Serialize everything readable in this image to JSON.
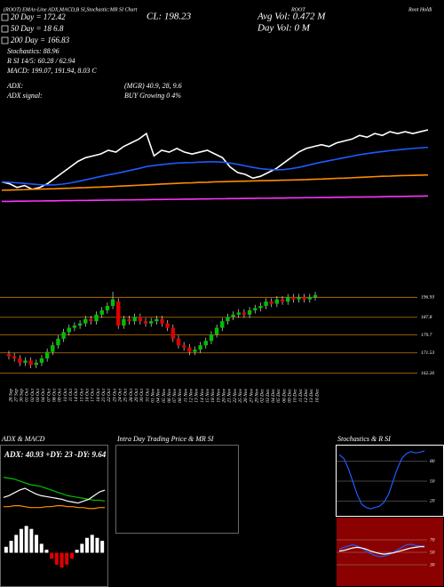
{
  "header": {
    "top_line": "(ROOT) EMAs-Line ADX,MACD,B SI,Stochastic:MR SI Chart",
    "symbol": "ROOT",
    "company": "Root Holdi",
    "ema20": "20 Day = 172.42",
    "close": "CL: 198.23",
    "avg_vol": "Avg Vol: 0.472 M",
    "day_vol": "Day Vol: 0 M",
    "ema50": "50 Day = 18 6.8",
    "ema200": "200 Day = 166.83",
    "stochastics": "Stochastics: 88.96",
    "rsi": "R SI 14/5: 60.28 / 62.94",
    "macd": "MACD: 199.07, 191.94, 8.03 C",
    "adx_label": "ADX:",
    "adx_values": "(MGR) 40.9, 28, 9.6",
    "adx_signal_label": "ADX signal:",
    "adx_signal": "BUY Growing 0 4%"
  },
  "chart_data": [
    {
      "type": "line",
      "ylim": [
        153,
        220
      ],
      "series": [
        {
          "color": "#ffffff",
          "values": [
            170,
            169,
            167,
            168,
            166,
            167,
            169,
            172,
            175,
            178,
            181,
            183,
            184,
            185,
            187,
            186,
            189,
            191,
            193,
            196,
            184,
            187,
            186,
            188,
            186,
            185,
            186,
            187,
            185,
            183,
            178,
            175,
            174,
            172,
            173,
            175,
            177,
            180,
            183,
            186,
            188,
            189,
            190,
            189,
            191,
            192,
            193,
            195,
            194,
            196,
            195,
            197,
            196,
            197,
            196,
            197,
            198
          ]
        },
        {
          "color": "#1e5bff",
          "values": [
            170,
            169.8,
            169.5,
            169.2,
            168.8,
            168.5,
            168.3,
            168.4,
            168.8,
            169.4,
            170.2,
            171.1,
            172,
            172.9,
            173.8,
            174.5,
            175.4,
            176.3,
            177.2,
            178.2,
            178.8,
            179.3,
            179.7,
            180.1,
            180.3,
            180.4,
            180.6,
            180.8,
            180.8,
            180.6,
            180.1,
            179.4,
            178.6,
            177.8,
            177.1,
            176.7,
            176.5,
            176.6,
            177.1,
            177.8,
            178.7,
            179.7,
            180.6,
            181.4,
            182.2,
            183,
            183.8,
            184.6,
            185.2,
            185.8,
            186.3,
            186.8,
            187.2,
            187.6,
            188,
            188.3,
            188.6
          ]
        },
        {
          "color": "#ff8c00",
          "values": [
            165.5,
            165.6,
            165.7,
            165.8,
            166,
            166.1,
            166.2,
            166.3,
            166.5,
            166.6,
            166.8,
            166.9,
            167.1,
            167.2,
            167.4,
            167.6,
            167.8,
            168,
            168.2,
            168.4,
            168.6,
            168.8,
            169,
            169.2,
            169.4,
            169.5,
            169.7,
            169.8,
            170,
            170.1,
            170.2,
            170.3,
            170.4,
            170.5,
            170.6,
            170.7,
            170.8,
            170.9,
            171,
            171.1,
            171.2,
            171.4,
            171.5,
            171.7,
            171.9,
            172,
            172.2,
            172.4,
            172.6,
            172.8,
            173,
            173.1,
            173.3,
            173.4,
            173.5,
            173.6,
            173.7
          ]
        },
        {
          "color": "#ff33ff",
          "values": [
            159.5,
            159.5,
            159.6,
            159.6,
            159.7,
            159.7,
            159.8,
            159.8,
            159.9,
            159.9,
            160,
            160,
            160.1,
            160.1,
            160.2,
            160.2,
            160.3,
            160.3,
            160.4,
            160.4,
            160.5,
            160.5,
            160.6,
            160.6,
            160.7,
            160.7,
            160.8,
            160.8,
            160.9,
            160.9,
            161,
            161,
            161.1,
            161.1,
            161.2,
            161.2,
            161.3,
            161.3,
            161.4,
            161.4,
            161.5,
            161.5,
            161.6,
            161.6,
            161.7,
            161.7,
            161.8,
            161.8,
            161.9,
            161.9,
            162,
            162.1,
            162.1,
            162.2,
            162.3,
            162.3,
            162.4
          ]
        }
      ]
    },
    {
      "type": "candlestick",
      "ylim": [
        158,
        206
      ],
      "yticks": [
        196.93,
        187.8,
        179.7,
        171.53,
        162.26
      ],
      "level_color": "#c87800",
      "up_color": "#00c000",
      "down_color": "#e00000",
      "categories": [
        "26 Sep",
        "27 Sep",
        "30 Sep",
        "01 Oct",
        "02 Oct",
        "03 Oct",
        "04 Oct",
        "07 Oct",
        "08 Oct",
        "09 Oct",
        "10 Oct",
        "11 Oct",
        "14 Oct",
        "15 Oct",
        "16 Oct",
        "17 Oct",
        "18 Oct",
        "21 Oct",
        "22 Oct",
        "23 Oct",
        "24 Oct",
        "25 Oct",
        "28 Oct",
        "29 Oct",
        "30 Oct",
        "31 Oct",
        "01 Nov",
        "04 Nov",
        "05 Nov",
        "06 Nov",
        "07 Nov",
        "08 Nov",
        "11 Nov",
        "12 Nov",
        "13 Nov",
        "14 Nov",
        "15 Nov",
        "18 Nov",
        "19 Nov",
        "20 Nov",
        "21 Nov",
        "22 Nov",
        "25 Nov",
        "26 Nov",
        "27 Nov",
        "29 Nov",
        "02 Dec",
        "03 Dec",
        "04 Dec",
        "05 Dec",
        "06 Dec",
        "09 Dec",
        "10 Dec",
        "11 Dec",
        "12 Dec",
        "13 Dec",
        "16 Dec"
      ],
      "open": [
        171,
        170,
        169,
        167,
        168,
        166,
        167,
        169,
        172,
        175,
        178,
        181,
        183,
        184,
        185,
        187,
        186,
        189,
        191,
        193,
        195,
        184,
        187,
        186,
        188,
        186,
        185,
        186,
        187,
        185,
        183,
        178,
        175,
        174,
        172,
        173,
        175,
        177,
        180,
        183,
        186,
        188,
        189,
        190,
        189,
        191,
        192,
        193,
        195,
        194,
        196,
        195,
        197,
        196,
        197,
        196,
        197
      ],
      "high": [
        172.5,
        171.5,
        170.5,
        169.5,
        169.5,
        168.5,
        170.5,
        173.5,
        176.5,
        179.5,
        182.5,
        184.5,
        185.5,
        186.5,
        188.5,
        188.5,
        190.5,
        192.5,
        194.5,
        199.5,
        196.5,
        188.5,
        188.5,
        189.5,
        189.5,
        187.5,
        187.5,
        188.5,
        188.5,
        186.5,
        184.5,
        179.5,
        176.5,
        175.5,
        174.5,
        176.5,
        178.5,
        181.5,
        184.5,
        187.5,
        189.5,
        190.5,
        191.5,
        191.5,
        192.5,
        193.5,
        194.5,
        196.5,
        196.5,
        197.5,
        197.5,
        198.5,
        198.5,
        198.5,
        198.5,
        198.5,
        199.5
      ],
      "low": [
        168.5,
        167.5,
        165.5,
        165.5,
        164.5,
        164.5,
        165.5,
        167.5,
        170.5,
        173.5,
        176.5,
        179.5,
        181.5,
        182.5,
        183.5,
        184.5,
        184.5,
        187.5,
        189.5,
        191.5,
        182.5,
        182.5,
        184.5,
        184.5,
        184.5,
        183.5,
        183.5,
        184.5,
        183.5,
        181.5,
        176.5,
        173.5,
        172.5,
        170.5,
        170.5,
        171.5,
        173.5,
        175.5,
        178.5,
        181.5,
        184.5,
        186.5,
        187.5,
        187.5,
        187.5,
        189.5,
        190.5,
        191.5,
        192.5,
        192.5,
        193.5,
        193.5,
        194.5,
        194.5,
        194.5,
        194.5,
        195.5
      ],
      "close": [
        170,
        169,
        167,
        168,
        166,
        167,
        169,
        172,
        175,
        178,
        181,
        183,
        184,
        185,
        187,
        186,
        189,
        191,
        193,
        196,
        184,
        187,
        186,
        188,
        186,
        185,
        186,
        187,
        185,
        183,
        178,
        175,
        174,
        172,
        173,
        175,
        177,
        180,
        183,
        186,
        188,
        189,
        190,
        189,
        191,
        192,
        193,
        195,
        194,
        196,
        195,
        197,
        196,
        197,
        196,
        197,
        198
      ]
    },
    {
      "type": "line",
      "title": "ADX & MACD",
      "subtitle": "ADX: 40.93 +DY: 23 -DY: 9.64",
      "ylim": [
        0,
        60
      ],
      "series": [
        {
          "color": "#00c000",
          "values": [
            42,
            41,
            40,
            38,
            36,
            34,
            33,
            32,
            30,
            28,
            26,
            24,
            22,
            21,
            20,
            19,
            18,
            17,
            17,
            16
          ]
        },
        {
          "color": "#ffffff",
          "values": [
            20,
            22,
            25,
            28,
            30,
            27,
            24,
            22,
            21,
            20,
            19,
            18,
            16,
            15,
            14,
            16,
            18,
            22,
            26,
            28
          ]
        },
        {
          "color": "#ff8c00",
          "values": [
            10,
            10,
            11,
            11,
            10,
            9,
            9,
            9,
            10,
            10,
            11,
            11,
            10,
            10,
            9,
            9,
            8,
            8,
            9,
            9
          ]
        }
      ]
    },
    {
      "type": "bar",
      "ylim": [
        -1,
        1
      ],
      "color": "#ffffff",
      "negative_color": "#e00000",
      "values": [
        0.2,
        0.4,
        0.6,
        0.8,
        0.9,
        0.8,
        0.6,
        0.3,
        0.1,
        -0.2,
        -0.4,
        -0.5,
        -0.4,
        -0.2,
        0.1,
        0.3,
        0.5,
        0.6,
        0.5,
        0.4
      ]
    },
    {
      "type": "line",
      "title": "Intra Day Trading Price & MR SI",
      "ylim": [
        0,
        100
      ],
      "series": []
    },
    {
      "type": "line",
      "title": "Stochastics & R SI",
      "ylim": [
        0,
        100
      ],
      "yticks": [
        20,
        50,
        80
      ],
      "series": [
        {
          "color": "#1e5bff",
          "values": [
            90,
            85,
            70,
            50,
            30,
            15,
            10,
            8,
            10,
            12,
            18,
            30,
            50,
            70,
            85,
            92,
            95,
            93,
            94,
            96
          ]
        }
      ]
    },
    {
      "type": "line",
      "ylim": [
        0,
        100
      ],
      "yticks": [
        30,
        50,
        70
      ],
      "background": "#8b0000",
      "series": [
        {
          "color": "#1e5bff",
          "values": [
            55,
            58,
            60,
            62,
            60,
            57,
            52,
            48,
            45,
            43,
            44,
            46,
            50,
            54,
            58,
            62,
            63,
            61,
            60,
            60
          ]
        },
        {
          "color": "#ffffff",
          "values": [
            52,
            53,
            55,
            57,
            58,
            57,
            55,
            52,
            50,
            48,
            47,
            48,
            49,
            51,
            53,
            55,
            57,
            58,
            59,
            59
          ]
        }
      ]
    }
  ]
}
